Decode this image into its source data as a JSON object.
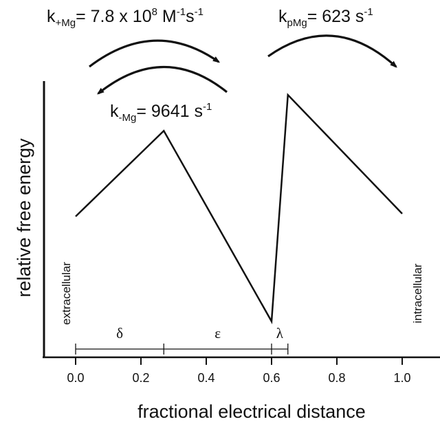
{
  "chart_data": {
    "type": "line",
    "xlabel": "fractional electrical distance",
    "ylabel": "relative free energy",
    "xlim": [
      -0.1,
      1.1
    ],
    "x_ticks": [
      {
        "value": 0.0,
        "label": "0.0"
      },
      {
        "value": 0.2,
        "label": "0.2"
      },
      {
        "value": 0.4,
        "label": "0.4"
      },
      {
        "value": 0.6,
        "label": "0.6"
      },
      {
        "value": 0.8,
        "label": "0.8"
      },
      {
        "value": 1.0,
        "label": "1.0"
      }
    ],
    "y_ticks_shown": false,
    "grid": false,
    "profile": {
      "x": [
        0.0,
        0.27,
        0.6,
        0.65,
        1.0
      ],
      "y_relative": [
        0.51,
        0.82,
        0.13,
        0.95,
        0.52
      ]
    },
    "side_labels": {
      "left": "extracellular",
      "right": "intracellular"
    },
    "distances": [
      {
        "symbol": "δ",
        "from": 0.0,
        "to": 0.27
      },
      {
        "symbol": "ε",
        "from": 0.27,
        "to": 0.6
      },
      {
        "symbol": "λ",
        "from": 0.6,
        "to": 0.65
      }
    ],
    "rate_constants": {
      "k_plus": {
        "main": "k",
        "sub": "+Mg",
        "value": "= 7.8 x 10",
        "exp": "8",
        "unit1": " M",
        "unit1_exp": "-1",
        "unit2": "s",
        "unit2_exp": "-1"
      },
      "k_p": {
        "main": "k",
        "sub": "pMg",
        "value": "= 623 s",
        "exp": "-1"
      },
      "k_minus": {
        "main": "k",
        "sub": "-Mg",
        "value": "= 9641 s",
        "exp": "-1"
      }
    },
    "arrow_color": "#111111"
  }
}
